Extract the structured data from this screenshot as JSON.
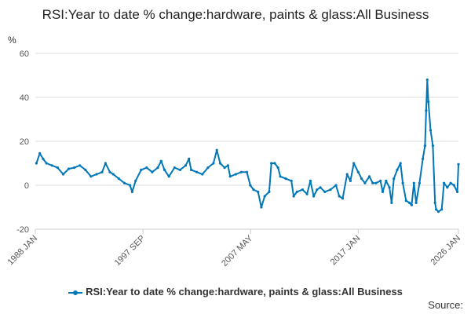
{
  "chart_data": {
    "type": "line",
    "title": "RSI:Year to date % change:hardware, paints & glass:All Business",
    "ylabel": "%",
    "xlabel": "",
    "ylim": [
      -20,
      60
    ],
    "y_ticks": [
      60,
      40,
      20,
      0,
      -20
    ],
    "x_tick_labels": [
      "1988 JAN",
      "1997 SEP",
      "2007 MAY",
      "2017 JAN",
      "2026 JAN"
    ],
    "x_ticks": [
      1988.0,
      1997.667,
      2007.333,
      2017.0,
      2026.0
    ],
    "xlim": [
      1988.0,
      2026.0
    ],
    "grid": true,
    "legend_position": "bottom",
    "colors": {
      "line": "#0078b8",
      "grid": "#dddddd",
      "axis": "#cccccc"
    },
    "series": [
      {
        "name": "RSI:Year to date % change:hardware, paints & glass:All Business",
        "points": [
          [
            1988.1,
            10
          ],
          [
            1988.4,
            14.5
          ],
          [
            1988.7,
            12
          ],
          [
            1989.0,
            10
          ],
          [
            1989.5,
            9
          ],
          [
            1990.0,
            8
          ],
          [
            1990.5,
            5
          ],
          [
            1991.0,
            7.5
          ],
          [
            1991.5,
            8
          ],
          [
            1992.0,
            9
          ],
          [
            1992.5,
            7
          ],
          [
            1993.0,
            4
          ],
          [
            1993.5,
            5
          ],
          [
            1994.0,
            6
          ],
          [
            1994.3,
            10
          ],
          [
            1994.7,
            6
          ],
          [
            1995.0,
            5
          ],
          [
            1995.5,
            3
          ],
          [
            1996.0,
            1
          ],
          [
            1996.5,
            0
          ],
          [
            1996.7,
            -3
          ],
          [
            1997.0,
            2
          ],
          [
            1997.5,
            7
          ],
          [
            1998.0,
            8
          ],
          [
            1998.5,
            6
          ],
          [
            1999.0,
            8
          ],
          [
            1999.3,
            11
          ],
          [
            1999.6,
            7
          ],
          [
            2000.0,
            4
          ],
          [
            2000.5,
            8
          ],
          [
            2001.0,
            7
          ],
          [
            2001.5,
            9
          ],
          [
            2001.8,
            12
          ],
          [
            2002.0,
            7
          ],
          [
            2002.5,
            6
          ],
          [
            2003.0,
            5
          ],
          [
            2003.5,
            8
          ],
          [
            2004.0,
            10
          ],
          [
            2004.3,
            16
          ],
          [
            2004.6,
            10
          ],
          [
            2005.0,
            8
          ],
          [
            2005.3,
            9
          ],
          [
            2005.5,
            4
          ],
          [
            2006.0,
            5
          ],
          [
            2006.5,
            6
          ],
          [
            2007.0,
            6
          ],
          [
            2007.3,
            0
          ],
          [
            2007.6,
            -2
          ],
          [
            2008.0,
            -3
          ],
          [
            2008.3,
            -10
          ],
          [
            2008.6,
            -5
          ],
          [
            2009.0,
            -3
          ],
          [
            2009.2,
            10
          ],
          [
            2009.5,
            10
          ],
          [
            2009.8,
            8
          ],
          [
            2010.0,
            4
          ],
          [
            2010.5,
            3
          ],
          [
            2011.0,
            2
          ],
          [
            2011.2,
            -5
          ],
          [
            2011.5,
            -3
          ],
          [
            2012.0,
            -2
          ],
          [
            2012.4,
            -4
          ],
          [
            2012.7,
            2
          ],
          [
            2013.0,
            -5
          ],
          [
            2013.3,
            -2
          ],
          [
            2013.6,
            -1
          ],
          [
            2014.0,
            -3
          ],
          [
            2014.5,
            -2
          ],
          [
            2015.0,
            0
          ],
          [
            2015.3,
            -5
          ],
          [
            2015.6,
            -6
          ],
          [
            2016.0,
            5
          ],
          [
            2016.3,
            2
          ],
          [
            2016.6,
            10
          ],
          [
            2017.0,
            6
          ],
          [
            2017.3,
            3
          ],
          [
            2017.6,
            1
          ],
          [
            2018.0,
            4
          ],
          [
            2018.3,
            1
          ],
          [
            2018.6,
            1
          ],
          [
            2019.0,
            2
          ],
          [
            2019.2,
            -3
          ],
          [
            2019.5,
            2
          ],
          [
            2019.8,
            -1
          ],
          [
            2020.0,
            -8
          ],
          [
            2020.2,
            3
          ],
          [
            2020.5,
            7
          ],
          [
            2020.8,
            10
          ],
          [
            2021.0,
            1
          ],
          [
            2021.3,
            -7
          ],
          [
            2021.6,
            -8
          ],
          [
            2021.8,
            -9
          ],
          [
            2022.0,
            1
          ],
          [
            2022.2,
            -8
          ],
          [
            2022.5,
            1
          ],
          [
            2022.8,
            12
          ],
          [
            2023.0,
            18
          ],
          [
            2023.1,
            34
          ],
          [
            2023.2,
            48
          ],
          [
            2023.3,
            38
          ],
          [
            2023.5,
            25
          ],
          [
            2023.7,
            18
          ],
          [
            2023.9,
            -8
          ],
          [
            2024.0,
            -11
          ],
          [
            2024.2,
            -12
          ],
          [
            2024.5,
            -11
          ],
          [
            2024.7,
            1
          ],
          [
            2025.0,
            -1
          ],
          [
            2025.3,
            1
          ],
          [
            2025.6,
            0
          ],
          [
            2025.9,
            -3
          ],
          [
            2026.0,
            9.5
          ]
        ]
      }
    ]
  },
  "source": {
    "label": "Source:"
  }
}
